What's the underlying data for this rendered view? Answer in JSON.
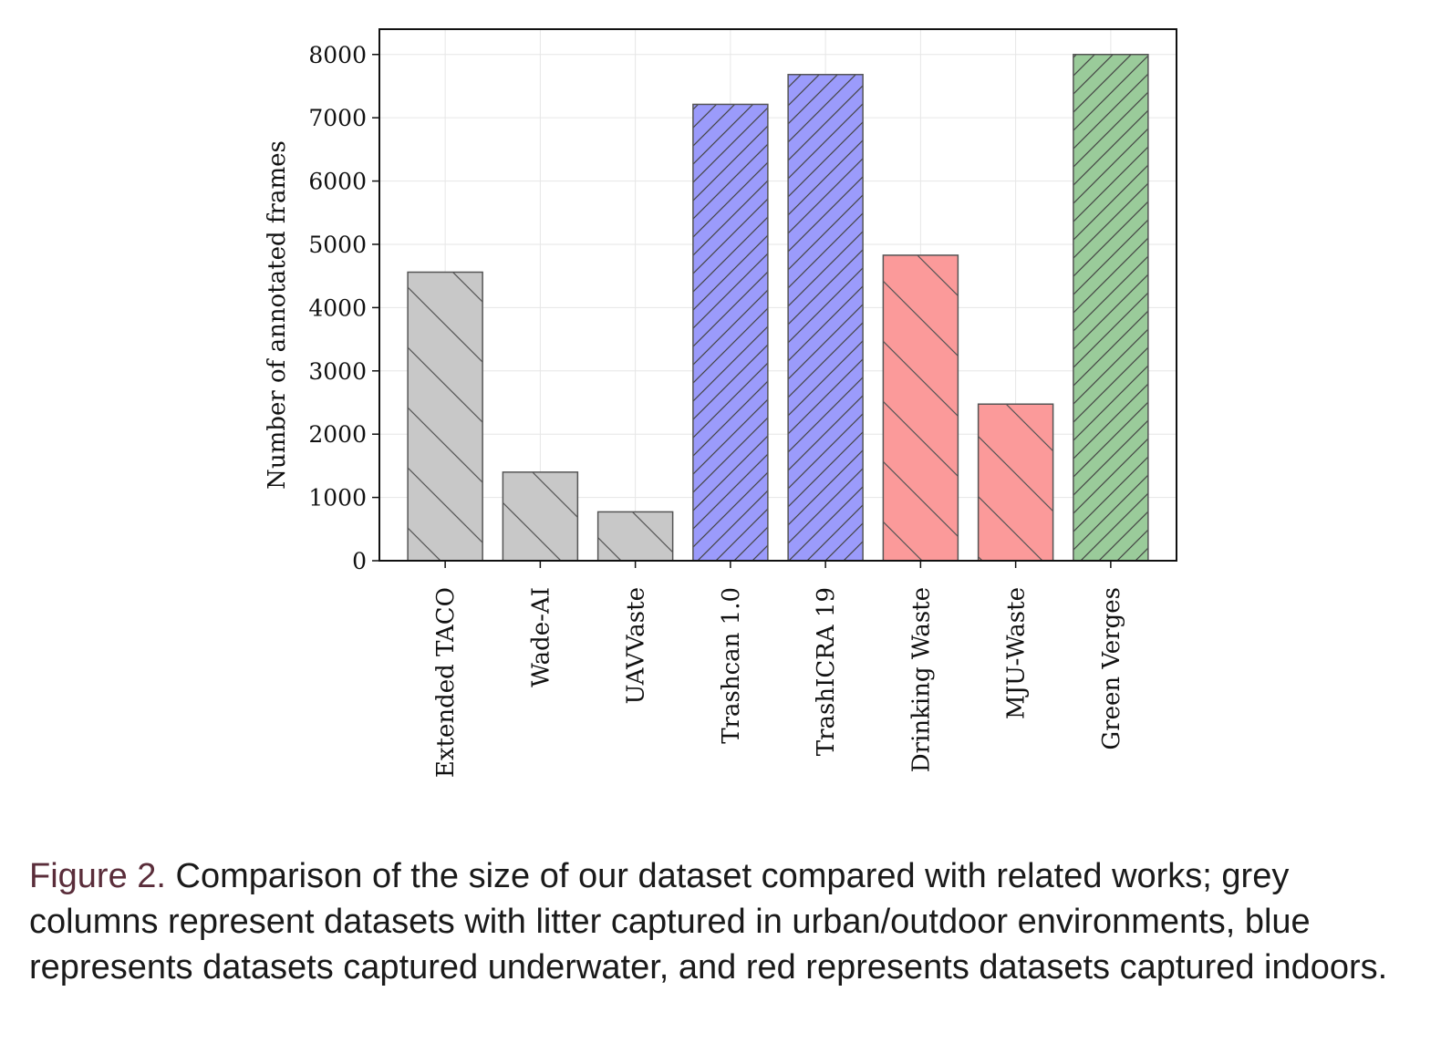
{
  "chart_data": {
    "type": "bar",
    "categories": [
      "Extended TACO",
      "Wade-AI",
      "UAVVaste",
      "Trashcan 1.0",
      "TrashICRA 19",
      "Drinking Waste",
      "MJU-Waste",
      "Green Verges"
    ],
    "values": [
      4560,
      1400,
      772,
      7212,
      7683,
      4828,
      2475,
      8000
    ],
    "colors": [
      "#c8c8c8",
      "#c8c8c8",
      "#c8c8c8",
      "#9b9bfb",
      "#9b9bfb",
      "#fb9a9a",
      "#fb9a9a",
      "#9acb9a"
    ],
    "hatch": [
      "sparse-backslash",
      "sparse-backslash",
      "sparse-backslash",
      "dense-slash",
      "dense-slash",
      "sparse-backslash",
      "sparse-backslash",
      "dense-slash"
    ],
    "ylabel": "Number of annotated frames",
    "xlabel": "",
    "ylim": [
      0,
      8400
    ],
    "yticks": [
      0,
      1000,
      2000,
      3000,
      4000,
      5000,
      6000,
      7000,
      8000
    ],
    "grid": true,
    "legend": "none"
  },
  "caption": {
    "label": "Figure 2.",
    "text": " Comparison of the size of our dataset compared with related works; grey columns represent datasets with litter captured in urban/outdoor environments, blue represents datasets captured underwater, and red represents datasets captured indoors."
  }
}
